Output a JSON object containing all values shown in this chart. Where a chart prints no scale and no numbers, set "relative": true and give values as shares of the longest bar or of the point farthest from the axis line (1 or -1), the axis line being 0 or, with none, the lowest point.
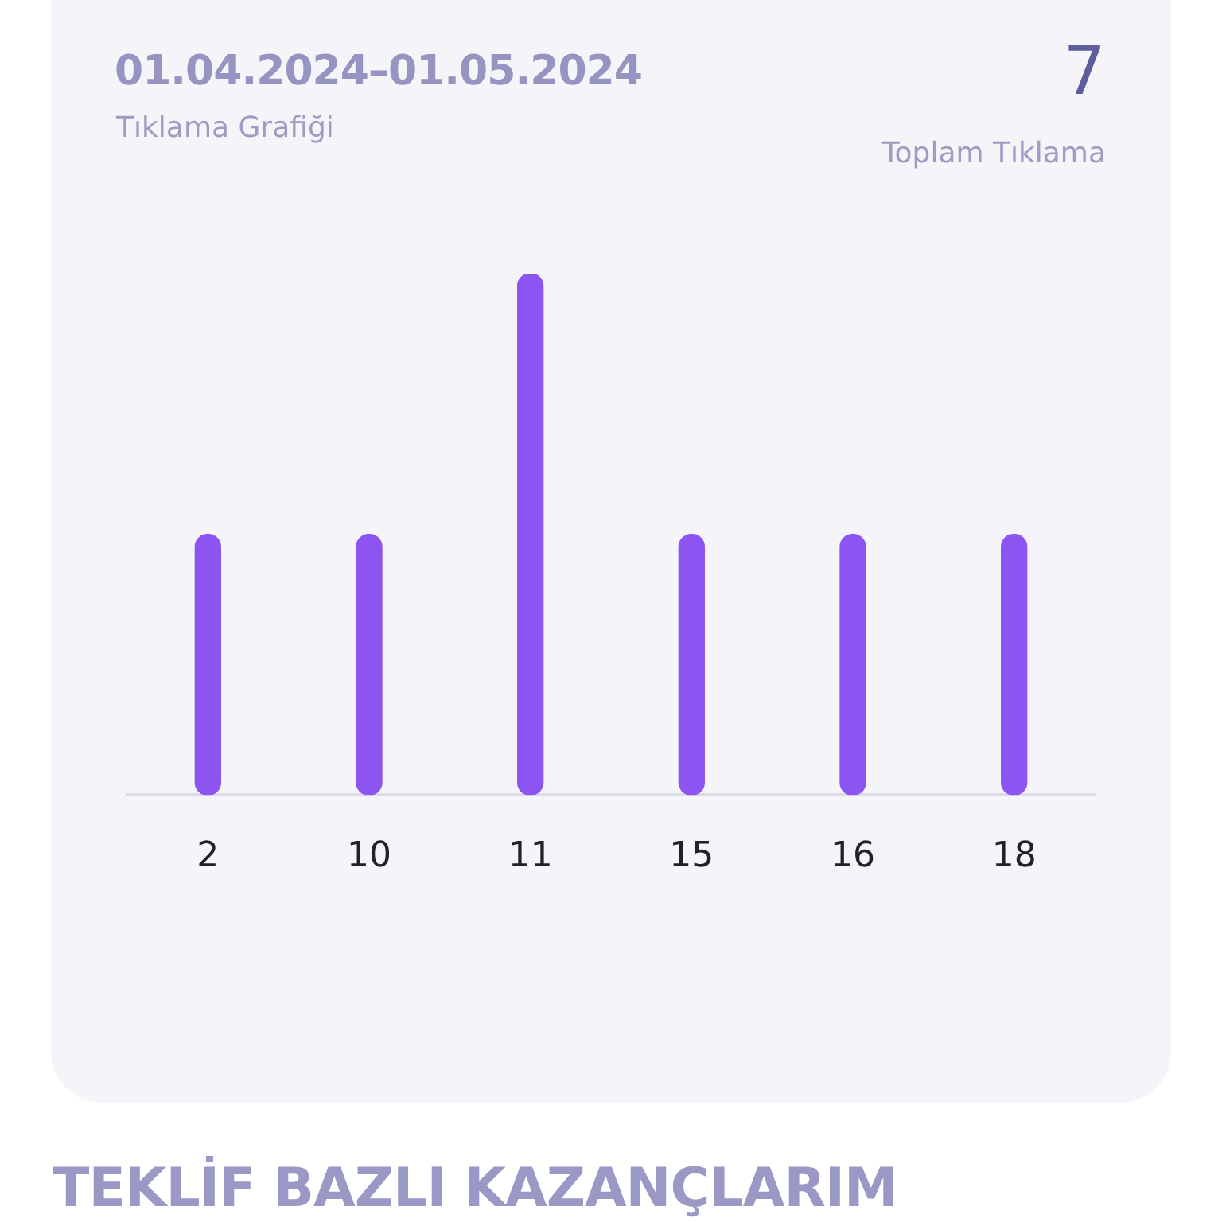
{
  "chart_data": {
    "type": "bar",
    "title": "01.04.2024–01.05.2024",
    "subtitle": "Tıklama Grafiği",
    "categories": [
      "2",
      "10",
      "11",
      "15",
      "16",
      "18"
    ],
    "values": [
      0.5,
      0.5,
      1,
      0.5,
      0.5,
      0.5
    ],
    "color": "#8c55f2",
    "relative": true,
    "annotations": [
      "7",
      "Toplam Tıklama",
      "TEKLİF BAZLI KAZANÇLARIM"
    ]
  }
}
